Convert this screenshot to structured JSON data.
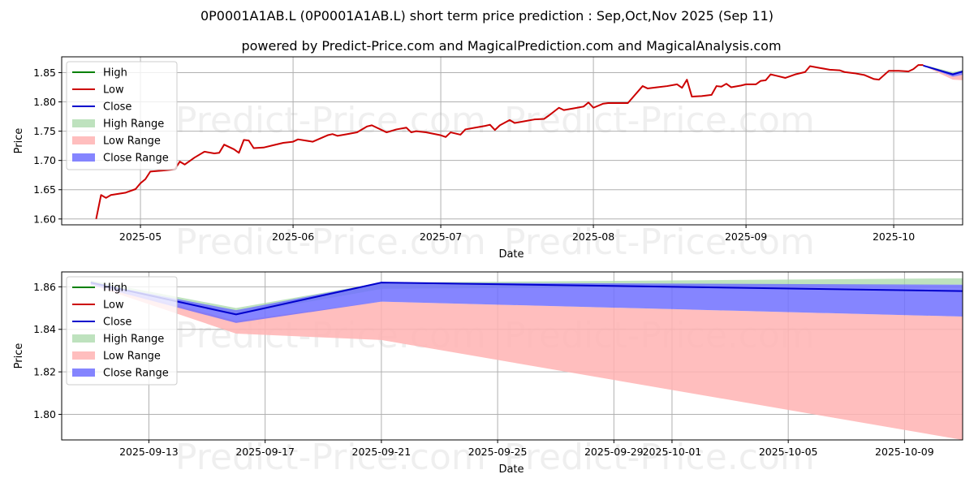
{
  "header": {
    "title": "0P0001A1AB.L (0P0001A1AB.L) short term price prediction : Sep,Oct,Nov 2025 (Sep 11)",
    "subtitle": "powered by Predict-Price.com and MagicalPrediction.com and MagicalAnalysis.com"
  },
  "watermark": "Predict-Price.com",
  "colors": {
    "high": "#008000",
    "low": "#cc0000",
    "close": "#0000cc",
    "high_range": "#a8d8a8",
    "low_range": "#ffb3b3",
    "close_range": "#7070ff",
    "grid": "#b0b0b0"
  },
  "legend": [
    "High",
    "Low",
    "Close",
    "High Range",
    "Low Range",
    "Close Range"
  ],
  "chart_data": [
    {
      "type": "line",
      "xlabel": "Date",
      "ylabel": "Price",
      "ylim": [
        1.59,
        1.877
      ],
      "xlim": [
        "2025-04-15",
        "2025-10-15"
      ],
      "grid": true,
      "legend_position": "top-left",
      "x_ticks": [
        "2025-05",
        "2025-06",
        "2025-07",
        "2025-08",
        "2025-09",
        "2025-10"
      ],
      "x_tick_dates": [
        "2025-05-01",
        "2025-06-01",
        "2025-07-01",
        "2025-08-01",
        "2025-09-01",
        "2025-10-01"
      ],
      "y_ticks": [
        "1.60",
        "1.65",
        "1.70",
        "1.75",
        "1.80",
        "1.85"
      ],
      "series": [
        {
          "name": "Low",
          "points": [
            [
              "2025-04-22",
              1.6
            ],
            [
              "2025-04-23",
              1.641
            ],
            [
              "2025-04-24",
              1.636
            ],
            [
              "2025-04-25",
              1.641
            ],
            [
              "2025-04-28",
              1.645
            ],
            [
              "2025-04-30",
              1.651
            ],
            [
              "2025-05-01",
              1.661
            ],
            [
              "2025-05-02",
              1.668
            ],
            [
              "2025-05-03",
              1.681
            ],
            [
              "2025-05-06",
              1.683
            ],
            [
              "2025-05-07",
              1.684
            ],
            [
              "2025-05-08",
              1.685
            ],
            [
              "2025-05-09",
              1.698
            ],
            [
              "2025-05-10",
              1.693
            ],
            [
              "2025-05-12",
              1.705
            ],
            [
              "2025-05-14",
              1.715
            ],
            [
              "2025-05-16",
              1.712
            ],
            [
              "2025-05-17",
              1.713
            ],
            [
              "2025-05-18",
              1.727
            ],
            [
              "2025-05-20",
              1.719
            ],
            [
              "2025-05-21",
              1.713
            ],
            [
              "2025-05-22",
              1.735
            ],
            [
              "2025-05-23",
              1.734
            ],
            [
              "2025-05-24",
              1.721
            ],
            [
              "2025-05-26",
              1.722
            ],
            [
              "2025-05-28",
              1.726
            ],
            [
              "2025-05-30",
              1.73
            ],
            [
              "2025-06-01",
              1.732
            ],
            [
              "2025-06-02",
              1.736
            ],
            [
              "2025-06-05",
              1.732
            ],
            [
              "2025-06-08",
              1.743
            ],
            [
              "2025-06-09",
              1.745
            ],
            [
              "2025-06-10",
              1.742
            ],
            [
              "2025-06-12",
              1.745
            ],
            [
              "2025-06-14",
              1.748
            ],
            [
              "2025-06-16",
              1.758
            ],
            [
              "2025-06-17",
              1.76
            ],
            [
              "2025-06-20",
              1.748
            ],
            [
              "2025-06-22",
              1.753
            ],
            [
              "2025-06-24",
              1.756
            ],
            [
              "2025-06-25",
              1.748
            ],
            [
              "2025-06-26",
              1.75
            ],
            [
              "2025-06-28",
              1.748
            ],
            [
              "2025-07-01",
              1.743
            ],
            [
              "2025-07-02",
              1.74
            ],
            [
              "2025-07-03",
              1.748
            ],
            [
              "2025-07-05",
              1.744
            ],
            [
              "2025-07-06",
              1.753
            ],
            [
              "2025-07-08",
              1.756
            ],
            [
              "2025-07-10",
              1.759
            ],
            [
              "2025-07-11",
              1.761
            ],
            [
              "2025-07-12",
              1.752
            ],
            [
              "2025-07-13",
              1.76
            ],
            [
              "2025-07-15",
              1.769
            ],
            [
              "2025-07-16",
              1.764
            ],
            [
              "2025-07-18",
              1.767
            ],
            [
              "2025-07-20",
              1.77
            ],
            [
              "2025-07-22",
              1.771
            ],
            [
              "2025-07-23",
              1.777
            ],
            [
              "2025-07-25",
              1.79
            ],
            [
              "2025-07-26",
              1.786
            ],
            [
              "2025-07-28",
              1.789
            ],
            [
              "2025-07-30",
              1.792
            ],
            [
              "2025-07-31",
              1.799
            ],
            [
              "2025-08-01",
              1.79
            ],
            [
              "2025-08-03",
              1.797
            ],
            [
              "2025-08-04",
              1.798
            ],
            [
              "2025-08-06",
              1.798
            ],
            [
              "2025-08-08",
              1.798
            ],
            [
              "2025-08-11",
              1.827
            ],
            [
              "2025-08-12",
              1.823
            ],
            [
              "2025-08-14",
              1.825
            ],
            [
              "2025-08-16",
              1.827
            ],
            [
              "2025-08-18",
              1.83
            ],
            [
              "2025-08-19",
              1.824
            ],
            [
              "2025-08-20",
              1.838
            ],
            [
              "2025-08-21",
              1.809
            ],
            [
              "2025-08-23",
              1.81
            ],
            [
              "2025-08-25",
              1.812
            ],
            [
              "2025-08-26",
              1.827
            ],
            [
              "2025-08-27",
              1.826
            ],
            [
              "2025-08-28",
              1.831
            ],
            [
              "2025-08-29",
              1.825
            ],
            [
              "2025-08-31",
              1.828
            ],
            [
              "2025-09-01",
              1.83
            ],
            [
              "2025-09-03",
              1.83
            ],
            [
              "2025-09-04",
              1.836
            ],
            [
              "2025-09-05",
              1.837
            ],
            [
              "2025-09-06",
              1.847
            ],
            [
              "2025-09-07",
              1.845
            ],
            [
              "2025-09-09",
              1.841
            ],
            [
              "2025-09-11",
              1.847
            ],
            [
              "2025-09-13",
              1.851
            ],
            [
              "2025-09-14",
              1.861
            ],
            [
              "2025-09-16",
              1.858
            ],
            [
              "2025-09-18",
              1.855
            ],
            [
              "2025-09-20",
              1.854
            ],
            [
              "2025-09-21",
              1.851
            ],
            [
              "2025-09-23",
              1.849
            ],
            [
              "2025-09-25",
              1.846
            ],
            [
              "2025-09-27",
              1.839
            ],
            [
              "2025-09-28",
              1.838
            ],
            [
              "2025-09-30",
              1.853
            ],
            [
              "2025-10-02",
              1.853
            ],
            [
              "2025-10-04",
              1.852
            ],
            [
              "2025-10-05",
              1.856
            ],
            [
              "2025-10-06",
              1.863
            ],
            [
              "2025-10-07",
              1.863
            ]
          ]
        },
        {
          "name": "Close",
          "points": [
            [
              "2025-10-07",
              1.862
            ],
            [
              "2025-10-13",
              1.847
            ],
            [
              "2025-10-19",
              1.862
            ],
            [
              "2025-11-08",
              1.858
            ]
          ]
        }
      ],
      "bands": [
        {
          "name": "High Range",
          "upper": [
            [
              "2025-10-07",
              1.863
            ],
            [
              "2025-10-13",
              1.851
            ],
            [
              "2025-10-19",
              1.862
            ],
            [
              "2025-11-08",
              1.864
            ]
          ],
          "lower": [
            [
              "2025-10-07",
              1.862
            ],
            [
              "2025-10-13",
              1.847
            ],
            [
              "2025-10-19",
              1.859
            ],
            [
              "2025-11-08",
              1.858
            ]
          ]
        },
        {
          "name": "Low Range",
          "upper": [
            [
              "2025-10-07",
              1.862
            ],
            [
              "2025-10-13",
              1.838
            ],
            [
              "2025-10-19",
              1.835
            ],
            [
              "2025-11-08",
              1.788
            ]
          ],
          "lower": [
            [
              "2025-10-07",
              1.862
            ],
            [
              "2025-10-13",
              1.838
            ],
            [
              "2025-10-19",
              1.835
            ],
            [
              "2025-11-08",
              1.788
            ]
          ]
        },
        {
          "name": "Close Range",
          "upper": [
            [
              "2025-10-07",
              1.862
            ],
            [
              "2025-10-13",
              1.849
            ],
            [
              "2025-10-19",
              1.861
            ],
            [
              "2025-11-08",
              1.861
            ]
          ],
          "lower": [
            [
              "2025-10-07",
              1.862
            ],
            [
              "2025-10-13",
              1.843
            ],
            [
              "2025-10-19",
              1.853
            ],
            [
              "2025-11-08",
              1.846
            ]
          ]
        }
      ]
    },
    {
      "type": "line",
      "xlabel": "Date",
      "ylabel": "Price",
      "ylim": [
        1.788,
        1.867
      ],
      "xlim": [
        "2025-09-10",
        "2025-10-11"
      ],
      "grid": true,
      "legend_position": "top-left",
      "x_ticks": [
        "2025-09-13",
        "2025-09-17",
        "2025-09-21",
        "2025-09-25",
        "2025-09-29",
        "2025-10-01",
        "2025-10-05",
        "2025-10-09"
      ],
      "y_ticks": [
        "1.80",
        "1.82",
        "1.84",
        "1.86"
      ],
      "series": [
        {
          "name": "Close",
          "points": [
            [
              "2025-09-11",
              1.862
            ],
            [
              "2025-09-16",
              1.847
            ],
            [
              "2025-09-21",
              1.862
            ],
            [
              "2025-10-11",
              1.858
            ]
          ]
        }
      ],
      "bands": [
        {
          "name": "High Range",
          "upper": [
            [
              "2025-09-11",
              1.863
            ],
            [
              "2025-09-16",
              1.85
            ],
            [
              "2025-09-21",
              1.862
            ],
            [
              "2025-10-11",
              1.864
            ]
          ],
          "lower": [
            [
              "2025-09-11",
              1.862
            ],
            [
              "2025-09-16",
              1.847
            ],
            [
              "2025-09-21",
              1.859
            ],
            [
              "2025-10-11",
              1.861
            ]
          ]
        },
        {
          "name": "Low Range",
          "upper": [
            [
              "2025-09-11",
              1.862
            ],
            [
              "2025-09-16",
              1.844
            ],
            [
              "2025-09-21",
              1.853
            ],
            [
              "2025-10-11",
              1.846
            ]
          ],
          "lower": [
            [
              "2025-09-11",
              1.861
            ],
            [
              "2025-09-16",
              1.838
            ],
            [
              "2025-09-21",
              1.835
            ],
            [
              "2025-10-11",
              1.788
            ]
          ]
        },
        {
          "name": "Close Range",
          "upper": [
            [
              "2025-09-11",
              1.862
            ],
            [
              "2025-09-16",
              1.849
            ],
            [
              "2025-09-21",
              1.862
            ],
            [
              "2025-10-11",
              1.861
            ]
          ],
          "lower": [
            [
              "2025-09-11",
              1.861
            ],
            [
              "2025-09-16",
              1.843
            ],
            [
              "2025-09-21",
              1.853
            ],
            [
              "2025-10-11",
              1.846
            ]
          ]
        }
      ]
    }
  ]
}
